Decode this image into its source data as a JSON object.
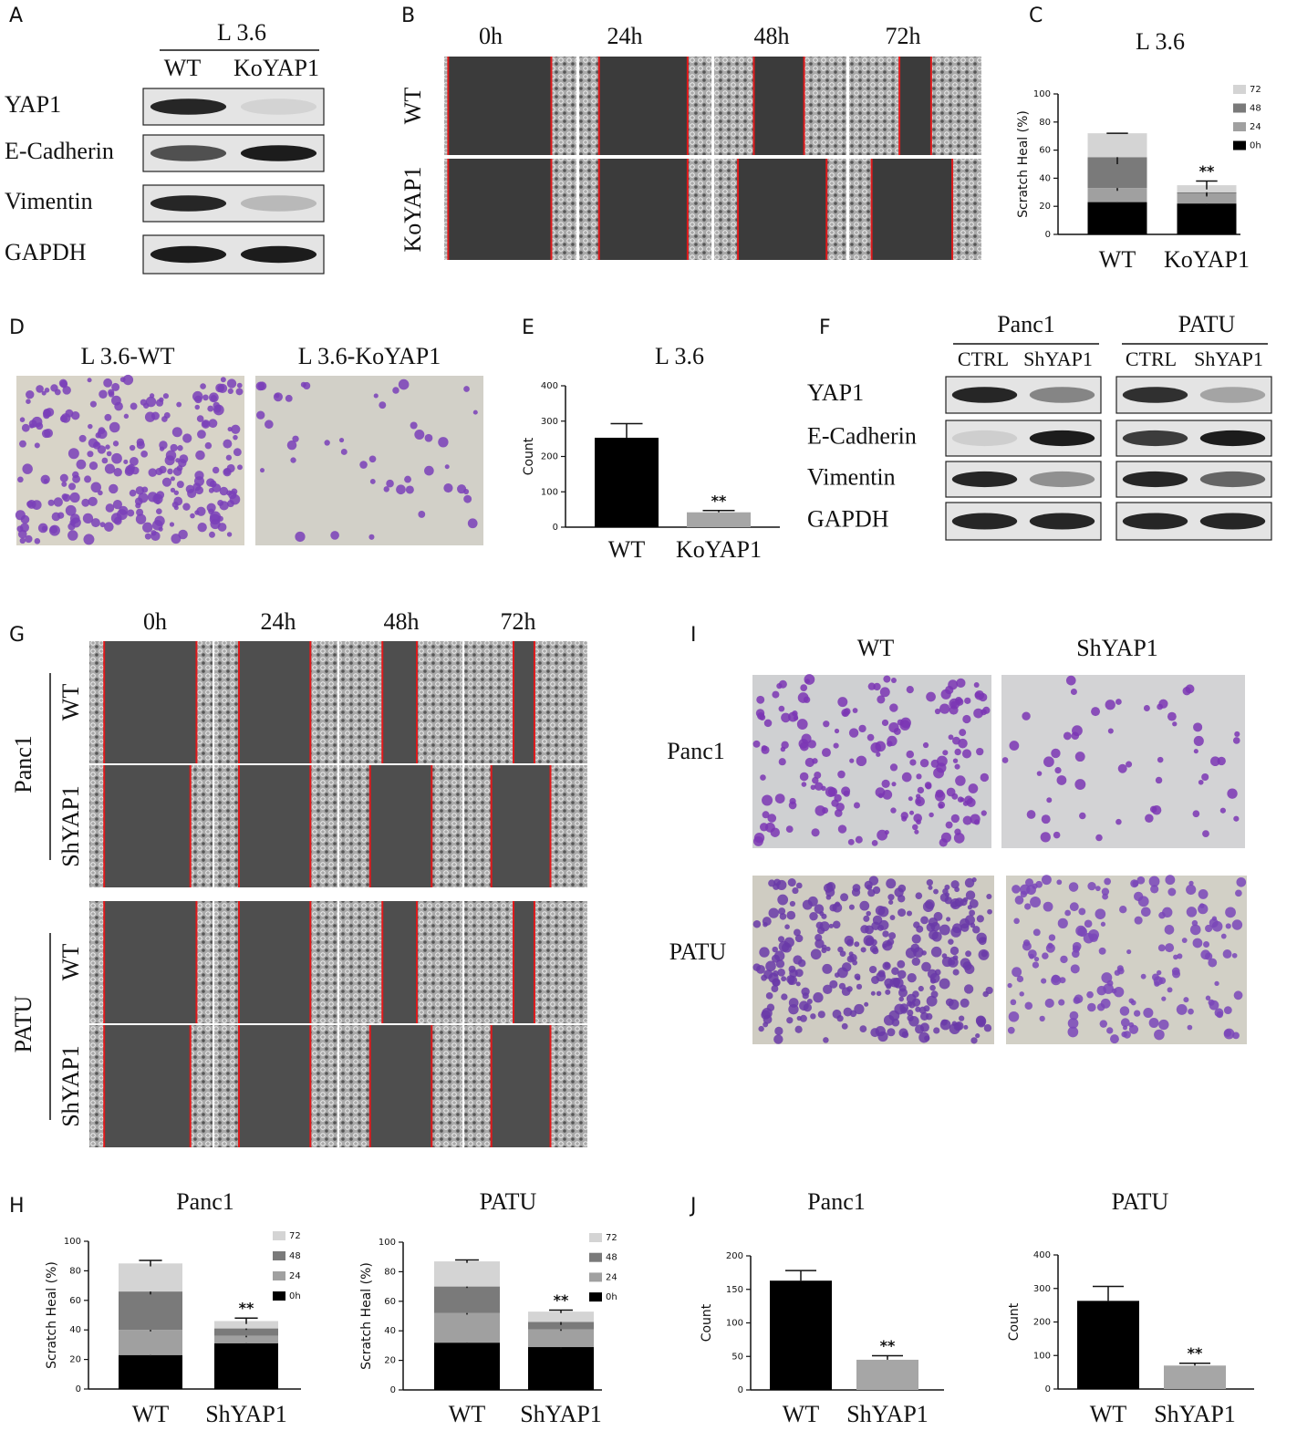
{
  "panel_labels": [
    "A",
    "B",
    "C",
    "D",
    "E",
    "F",
    "G",
    "H",
    "I",
    "J"
  ],
  "blot_A": {
    "title": "L 3.6",
    "lanes": [
      "WT",
      "KoYAP1"
    ],
    "proteins": [
      "YAP1",
      "E-Cadherin",
      "Vimentin",
      "GAPDH"
    ]
  },
  "wound_B": {
    "times": [
      "0h",
      "24h",
      "48h",
      "72h"
    ],
    "rows": [
      "WT",
      "KoYAP1"
    ]
  },
  "transwell_D": {
    "labels": [
      "L 3.6-WT",
      "L 3.6-KoYAP1"
    ]
  },
  "blot_F": {
    "groups": [
      {
        "name": "Panc1",
        "lanes": [
          "CTRL",
          "ShYAP1"
        ]
      },
      {
        "name": "PATU",
        "lanes": [
          "CTRL",
          "ShYAP1"
        ]
      }
    ],
    "proteins": [
      "YAP1",
      "E-Cadherin",
      "Vimentin",
      "GAPDH"
    ]
  },
  "wound_G": {
    "times": [
      "0h",
      "24h",
      "48h",
      "72h"
    ],
    "cells": [
      "Panc1",
      "PATU"
    ],
    "rows": [
      "WT",
      "ShYAP1"
    ]
  },
  "transwell_I": {
    "columns": [
      "WT",
      "ShYAP1"
    ],
    "rows": [
      "Panc1",
      "PATU"
    ]
  },
  "chart_data": [
    {
      "type": "bar",
      "stacked": true,
      "title": "L 3.6",
      "y_label": "Scratch Heal (%)",
      "categories": [
        "WT",
        "KoYAP1"
      ],
      "series": [
        {
          "name": "0h",
          "color": "#000000",
          "values": [
            23,
            22
          ],
          "errors": [
            1,
            1
          ]
        },
        {
          "name": "24",
          "color": "#a0a0a0",
          "values": [
            10,
            7
          ],
          "errors": [
            2,
            2
          ]
        },
        {
          "name": "48",
          "color": "#7a7a7a",
          "values": [
            22,
            1
          ],
          "errors": [
            5,
            2
          ]
        },
        {
          "name": "72",
          "color": "#d4d4d4",
          "values": [
            17,
            5
          ],
          "errors": [
            0,
            3
          ]
        }
      ],
      "ylim": [
        0,
        100
      ],
      "yticks": [
        0,
        20,
        40,
        60,
        80,
        100
      ],
      "annotations": [
        {
          "text": "**",
          "category": "KoYAP1"
        }
      ]
    },
    {
      "type": "bar",
      "title": "L 3.6",
      "y_label": "Count",
      "categories": [
        "WT",
        "KoYAP1"
      ],
      "values": [
        253,
        42
      ],
      "errors": [
        40,
        5
      ],
      "colors": [
        "#000000",
        "#a6a6a6"
      ],
      "ylim": [
        0,
        400
      ],
      "yticks": [
        0,
        100,
        200,
        300,
        400
      ],
      "annotations": [
        {
          "text": "**",
          "category": "KoYAP1"
        }
      ]
    },
    {
      "type": "bar",
      "stacked": true,
      "title": "Panc1",
      "y_label": "Scratch Heal (%)",
      "categories": [
        "WT",
        "ShYAP1"
      ],
      "series": [
        {
          "name": "0h",
          "color": "#000000",
          "values": [
            23,
            31
          ],
          "errors": [
            1,
            1
          ]
        },
        {
          "name": "24",
          "color": "#a0a0a0",
          "values": [
            17,
            5
          ],
          "errors": [
            1,
            1
          ]
        },
        {
          "name": "48",
          "color": "#7a7a7a",
          "values": [
            26,
            5
          ],
          "errors": [
            2,
            1
          ]
        },
        {
          "name": "72",
          "color": "#d4d4d4",
          "values": [
            19,
            5
          ],
          "errors": [
            2,
            2
          ]
        }
      ],
      "ylim": [
        0,
        100
      ],
      "yticks": [
        0,
        20,
        40,
        60,
        80,
        100
      ],
      "annotations": [
        {
          "text": "**",
          "category": "ShYAP1"
        }
      ]
    },
    {
      "type": "bar",
      "stacked": true,
      "title": "PATU",
      "y_label": "Scratch Heal (%)",
      "categories": [
        "WT",
        "ShYAP1"
      ],
      "series": [
        {
          "name": "0h",
          "color": "#000000",
          "values": [
            32,
            29
          ],
          "errors": [
            1,
            1
          ]
        },
        {
          "name": "24",
          "color": "#a0a0a0",
          "values": [
            20,
            12
          ],
          "errors": [
            1,
            1
          ]
        },
        {
          "name": "48",
          "color": "#7a7a7a",
          "values": [
            18,
            5
          ],
          "errors": [
            1,
            2
          ]
        },
        {
          "name": "72",
          "color": "#d4d4d4",
          "values": [
            17,
            7
          ],
          "errors": [
            1,
            1
          ]
        }
      ],
      "ylim": [
        0,
        100
      ],
      "yticks": [
        0,
        20,
        40,
        60,
        80,
        100
      ],
      "annotations": [
        {
          "text": "**",
          "category": "ShYAP1"
        }
      ]
    },
    {
      "type": "bar",
      "title": "Panc1",
      "y_label": "Count",
      "categories": [
        "WT",
        "ShYAP1"
      ],
      "values": [
        163,
        45
      ],
      "errors": [
        15,
        6
      ],
      "colors": [
        "#000000",
        "#a6a6a6"
      ],
      "ylim": [
        0,
        200
      ],
      "yticks": [
        0,
        50,
        100,
        150,
        200
      ],
      "annotations": [
        {
          "text": "**",
          "category": "ShYAP1"
        }
      ]
    },
    {
      "type": "bar",
      "title": "PATU",
      "y_label": "Count",
      "categories": [
        "WT",
        "ShYAP1"
      ],
      "values": [
        263,
        70
      ],
      "errors": [
        43,
        7
      ],
      "colors": [
        "#000000",
        "#a6a6a6"
      ],
      "ylim": [
        0,
        400
      ],
      "yticks": [
        0,
        100,
        200,
        300,
        400
      ],
      "annotations": [
        {
          "text": "**",
          "category": "ShYAP1"
        }
      ]
    }
  ]
}
